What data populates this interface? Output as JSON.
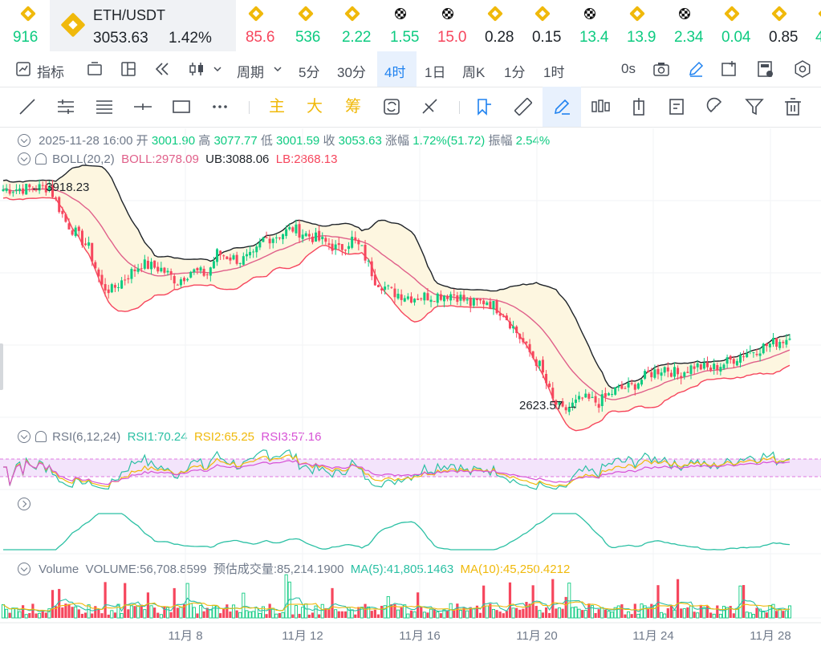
{
  "tickers": [
    {
      "value": "916",
      "color": "#0ecb81",
      "icon": "bnb-icon",
      "x": 16
    },
    {
      "value": "85.6",
      "color": "#f6465d",
      "icon": "bnb-icon",
      "x": 306
    },
    {
      "value": "536",
      "color": "#0ecb81",
      "icon": "bnb-icon",
      "x": 368
    },
    {
      "value": "2.22",
      "color": "#0ecb81",
      "icon": "bnb-icon",
      "x": 426
    },
    {
      "value": "1.55",
      "color": "#0ecb81",
      "icon": "checker-icon",
      "x": 486
    },
    {
      "value": "15.0",
      "color": "#f6465d",
      "icon": "checker-icon",
      "x": 545
    },
    {
      "value": "0.28",
      "color": "#1e2329",
      "icon": "bnb-icon",
      "x": 604
    },
    {
      "value": "0.15",
      "color": "#1e2329",
      "icon": "bnb-icon",
      "x": 663
    },
    {
      "value": "13.4",
      "color": "#0ecb81",
      "icon": "checker-icon",
      "x": 722
    },
    {
      "value": "13.9",
      "color": "#0ecb81",
      "icon": "bnb-icon",
      "x": 781
    },
    {
      "value": "2.34",
      "color": "#0ecb81",
      "icon": "checker-icon",
      "x": 840
    },
    {
      "value": "0.04",
      "color": "#0ecb81",
      "icon": "bnb-icon",
      "x": 899
    },
    {
      "value": "0.85",
      "color": "#1e2329",
      "icon": "bnb-icon",
      "x": 958
    },
    {
      "value": "4",
      "color": "#0ecb81",
      "icon": "bnb-icon",
      "x": 1016
    }
  ],
  "pair": {
    "symbol": "ETH/USDT",
    "price": "3053.63",
    "change": "1.42%",
    "icon": "bnb-icon"
  },
  "toolbar": {
    "indicator": "指标",
    "period": "周期",
    "intervals": [
      "5分",
      "30分",
      "4时",
      "1日",
      "周K",
      "1分",
      "1时"
    ],
    "active_interval": "4时",
    "countdown": "0s",
    "icons": [
      "chart-icon",
      "layout-icon",
      "grid-icon",
      "replay-icon",
      "candle-type-icon",
      "camera-icon",
      "pen-icon",
      "add-window-icon",
      "calculator-icon",
      "settings-icon"
    ]
  },
  "drawing_tools": {
    "text_tools": [
      "主",
      "大",
      "筹"
    ],
    "icons": [
      "line-tool-icon",
      "parallel-tool-icon",
      "channel-tool-icon",
      "horizontal-tool-icon",
      "rect-tool-icon",
      "more-tools-icon",
      "sync-icon",
      "crosshair-icon",
      "bookmark-icon",
      "ruler-icon",
      "brush-icon",
      "candles-icon",
      "position-icon",
      "note-icon",
      "magnet-icon",
      "filter-icon",
      "trash-icon"
    ]
  },
  "ohlc": {
    "date": "2025-11-28 16:00",
    "open_label": "开",
    "open": "3001.90",
    "high_label": "高",
    "high": "3077.77",
    "low_label": "低",
    "low": "3001.59",
    "close_label": "收",
    "close": "3053.63",
    "change_label": "涨幅",
    "change": "1.72%(51.72)",
    "amp_label": "振幅",
    "amp": "2.54%"
  },
  "boll": {
    "label": "BOLL(20,2)",
    "boll": "BOLL:2978.09",
    "ub": "UB:3088.06",
    "lb": "LB:2868.13",
    "colors": {
      "mid": "#e0608a",
      "ub": "#1e2329",
      "lb": "#f6465d"
    }
  },
  "rsi": {
    "label": "RSI(6,12,24)",
    "rsi1": "RSI1:70.24",
    "rsi2": "RSI2:65.25",
    "rsi3": "RSI3:57.16",
    "colors": {
      "rsi1": "#2bc0a4",
      "rsi2": "#f0b90b",
      "rsi3": "#d752d6"
    }
  },
  "volume": {
    "label": "Volume",
    "volume": "VOLUME:56,708.8599",
    "estimate": "预估成交量:85,214.1900",
    "ma5": "MA(5):41,805.1463",
    "ma10": "MA(10):45,250.4212",
    "colors": {
      "ma5": "#2bc0a4",
      "ma10": "#f0b90b"
    }
  },
  "chart_data": {
    "type": "candlestick",
    "title": "ETH/USDT 4h",
    "xlabel": "",
    "ylabel": "",
    "x_ticks": [
      "11月 8",
      "11月 12",
      "11月 16",
      "11月 20",
      "11月 24",
      "11月 28"
    ],
    "ylim": [
      2560,
      4000
    ],
    "annotations": [
      {
        "text": "← 3918.23",
        "value": 3918.23
      },
      {
        "text": "2623.57 →",
        "value": 2623.57
      }
    ],
    "close_anchors": [
      [
        0,
        3905
      ],
      [
        8,
        3910
      ],
      [
        14,
        3918
      ],
      [
        19,
        3720
      ],
      [
        26,
        3570
      ],
      [
        30,
        3350
      ],
      [
        33,
        3330
      ],
      [
        37,
        3400
      ],
      [
        42,
        3480
      ],
      [
        48,
        3450
      ],
      [
        53,
        3380
      ],
      [
        57,
        3440
      ],
      [
        62,
        3420
      ],
      [
        65,
        3540
      ],
      [
        72,
        3500
      ],
      [
        76,
        3520
      ],
      [
        79,
        3620
      ],
      [
        83,
        3640
      ],
      [
        88,
        3680
      ],
      [
        93,
        3640
      ],
      [
        98,
        3600
      ],
      [
        102,
        3560
      ],
      [
        106,
        3620
      ],
      [
        109,
        3560
      ],
      [
        113,
        3390
      ],
      [
        118,
        3320
      ],
      [
        124,
        3290
      ],
      [
        131,
        3300
      ],
      [
        137,
        3310
      ],
      [
        142,
        3250
      ],
      [
        147,
        3270
      ],
      [
        152,
        3200
      ],
      [
        156,
        3090
      ],
      [
        159,
        3000
      ],
      [
        163,
        2900
      ],
      [
        167,
        2700
      ],
      [
        170,
        2640
      ],
      [
        176,
        2710
      ],
      [
        181,
        2690
      ],
      [
        186,
        2760
      ],
      [
        191,
        2780
      ],
      [
        196,
        2850
      ],
      [
        201,
        2890
      ],
      [
        205,
        2850
      ],
      [
        210,
        2900
      ],
      [
        215,
        2880
      ],
      [
        220,
        2920
      ],
      [
        225,
        2970
      ],
      [
        230,
        3000
      ],
      [
        234,
        3030
      ],
      [
        238,
        3054
      ]
    ],
    "series": [
      {
        "name": "BOLL UB",
        "values": "computed"
      },
      {
        "name": "BOLL MID",
        "values": "computed"
      },
      {
        "name": "BOLL LB",
        "values": "computed"
      },
      {
        "name": "RSI1",
        "values": "computed"
      },
      {
        "name": "RSI2",
        "values": "computed"
      },
      {
        "name": "RSI3",
        "values": "computed"
      },
      {
        "name": "Volume",
        "values": "computed"
      }
    ]
  }
}
